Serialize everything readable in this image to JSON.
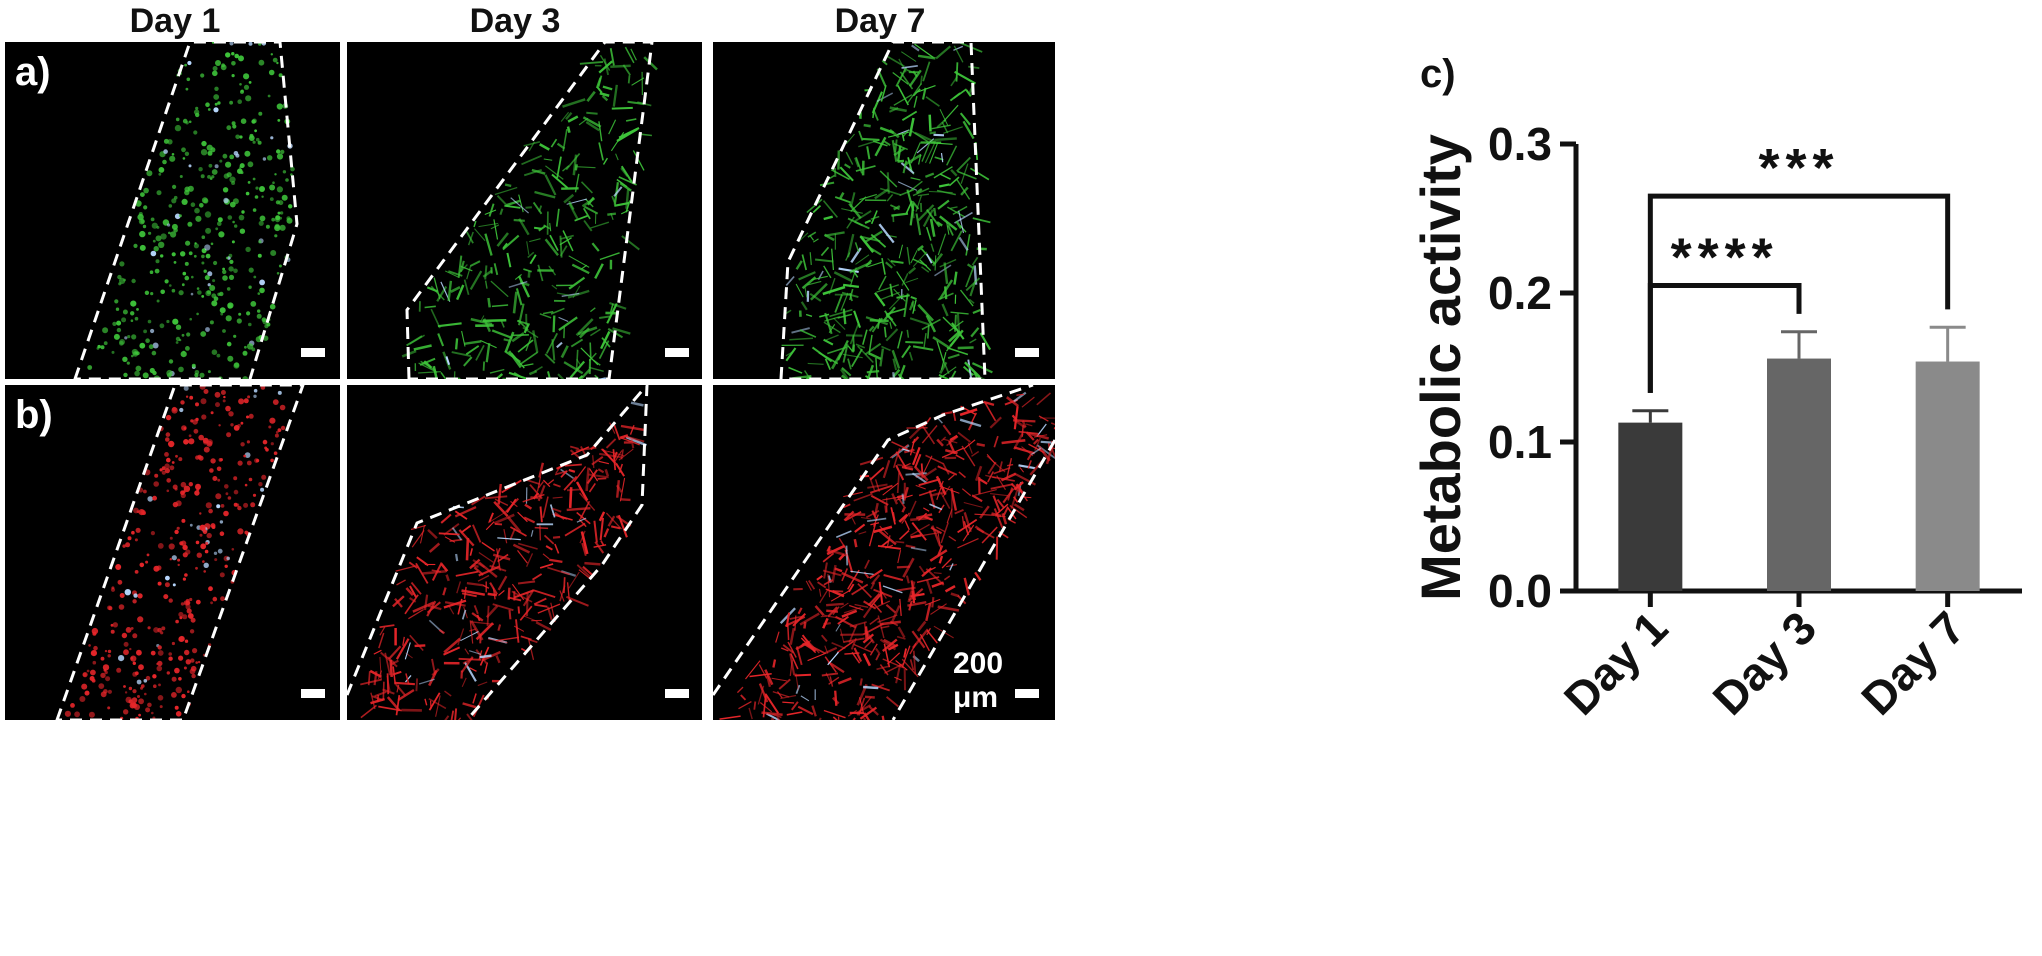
{
  "columns": [
    "Day 1",
    "Day 3",
    "Day 7"
  ],
  "panel_labels": {
    "a": "a)",
    "b": "b)",
    "c": "c)"
  },
  "scale_bar_label": "200 μm",
  "colors": {
    "live_stain": "#3ec43a",
    "actin_stain": "#e8262a",
    "nuclei": "#b8d8ff",
    "bar_day1": "#3a3a3a",
    "bar_day3": "#666666",
    "bar_day7": "#8a8a8a"
  },
  "chart_data": {
    "type": "bar",
    "categories": [
      "Day 1",
      "Day 3",
      "Day 7"
    ],
    "values": [
      0.113,
      0.156,
      0.154
    ],
    "errors": [
      0.008,
      0.018,
      0.023
    ],
    "ylabel": "Metabolic activity",
    "xlabel": "",
    "ylim": [
      0,
      0.3
    ],
    "yticks": [
      "0.0",
      "0.1",
      "0.2",
      "0.3"
    ],
    "significance": [
      {
        "from": "Day 1",
        "to": "Day 3",
        "label": "****"
      },
      {
        "from": "Day 1",
        "to": "Day 7",
        "label": "***"
      }
    ]
  }
}
